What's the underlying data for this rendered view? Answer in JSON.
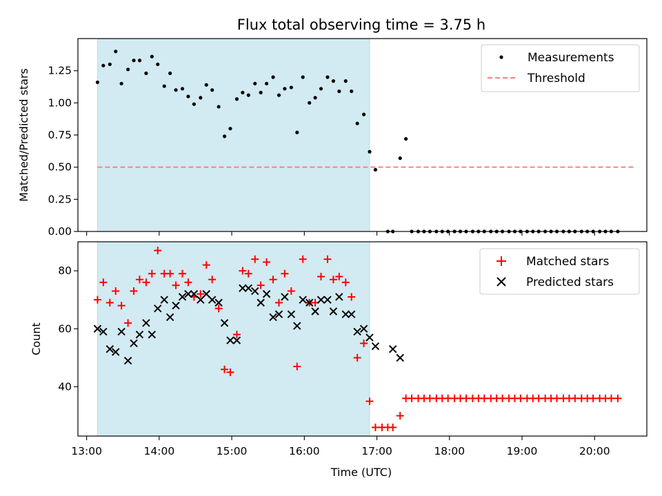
{
  "figure_title": "Flux total observing time = 3.75 h",
  "xlabel": "Time (UTC)",
  "x_ticks": [
    "13:00",
    "14:00",
    "15:00",
    "16:00",
    "17:00",
    "18:00",
    "19:00",
    "20:00"
  ],
  "colors": {
    "shade": "#add8e6",
    "matched": "#ff0000",
    "predicted": "#000000",
    "measurement": "#000000",
    "threshold": "#ff7f7f"
  },
  "chart_data": [
    {
      "type": "scatter",
      "panel": "top",
      "title": "Flux total observing time = 3.75 h",
      "xlabel": "",
      "ylabel": "Matched/Predicted stars",
      "x_unit": "hours UTC",
      "xlim": [
        12.88,
        20.72
      ],
      "ylim": [
        0,
        1.5
      ],
      "y_ticks": [
        "0.00",
        "0.25",
        "0.50",
        "0.75",
        "1.00",
        "1.25"
      ],
      "y_tick_values": [
        0,
        0.25,
        0.5,
        0.75,
        1.0,
        1.25
      ],
      "shaded_span": [
        "13:09",
        "16:54"
      ],
      "legend": {
        "placement": "top-right",
        "entries": [
          "Measurements",
          "Threshold"
        ]
      },
      "series": [
        {
          "name": "Measurements",
          "kind": "dots",
          "x": [
            13.15,
            13.23,
            13.32,
            13.4,
            13.48,
            13.57,
            13.65,
            13.73,
            13.82,
            13.9,
            13.98,
            14.07,
            14.15,
            14.23,
            14.32,
            14.4,
            14.48,
            14.57,
            14.65,
            14.73,
            14.82,
            14.9,
            14.98,
            15.07,
            15.15,
            15.23,
            15.32,
            15.4,
            15.48,
            15.57,
            15.65,
            15.73,
            15.82,
            15.9,
            15.98,
            16.07,
            16.15,
            16.23,
            16.32,
            16.4,
            16.48,
            16.57,
            16.65,
            16.73,
            16.82,
            16.9,
            16.98,
            17.15,
            17.22,
            17.32,
            17.4,
            17.48,
            17.57,
            17.65,
            17.73,
            17.82,
            17.9,
            17.98,
            18.07,
            18.15,
            18.23,
            18.32,
            18.4,
            18.48,
            18.57,
            18.65,
            18.73,
            18.82,
            18.9,
            18.98,
            19.07,
            19.15,
            19.23,
            19.32,
            19.4,
            19.48,
            19.57,
            19.65,
            19.73,
            19.82,
            19.9,
            19.98,
            20.07,
            20.15,
            20.23,
            20.32
          ],
          "y": [
            1.16,
            1.29,
            1.3,
            1.4,
            1.15,
            1.26,
            1.33,
            1.33,
            1.23,
            1.36,
            1.3,
            1.13,
            1.23,
            1.1,
            1.11,
            1.05,
            0.99,
            1.04,
            1.14,
            1.1,
            0.97,
            0.74,
            0.8,
            1.03,
            1.08,
            1.06,
            1.15,
            1.08,
            1.15,
            1.2,
            1.06,
            1.11,
            1.12,
            0.77,
            1.2,
            1.0,
            1.04,
            1.11,
            1.2,
            1.17,
            1.09,
            1.17,
            1.09,
            0.84,
            0.91,
            0.62,
            0.48,
            0.0,
            0.0,
            0.57,
            0.72,
            0.0,
            0.0,
            0.0,
            0.0,
            0.0,
            0.0,
            0.0,
            0.0,
            0.0,
            0.0,
            0.0,
            0.0,
            0.0,
            0.0,
            0.0,
            0.0,
            0.0,
            0.0,
            0.0,
            0.0,
            0.0,
            0.0,
            0.0,
            0.0,
            0.0,
            0.0,
            0.0,
            0.0,
            0.0,
            0.0,
            0.0,
            0.0,
            0.0,
            0.0,
            0.0
          ]
        },
        {
          "name": "Threshold",
          "kind": "dashed-line",
          "x": [
            13.15,
            20.57
          ],
          "y": [
            0.5,
            0.5
          ]
        }
      ]
    },
    {
      "type": "scatter",
      "panel": "bottom",
      "xlabel": "Time (UTC)",
      "ylabel": "Count",
      "x_unit": "hours UTC",
      "xlim": [
        12.88,
        20.72
      ],
      "ylim": [
        23,
        90
      ],
      "y_ticks": [
        "40",
        "60",
        "80"
      ],
      "y_tick_values": [
        40,
        60,
        80
      ],
      "shaded_span": [
        "13:09",
        "16:54"
      ],
      "legend": {
        "placement": "top-right",
        "entries": [
          "Matched stars",
          "Predicted stars"
        ]
      },
      "series": [
        {
          "name": "Matched stars",
          "kind": "plus",
          "x": [
            13.15,
            13.23,
            13.32,
            13.4,
            13.48,
            13.57,
            13.65,
            13.73,
            13.82,
            13.9,
            13.98,
            14.07,
            14.15,
            14.23,
            14.32,
            14.4,
            14.48,
            14.57,
            14.65,
            14.73,
            14.82,
            14.9,
            14.98,
            15.07,
            15.15,
            15.23,
            15.32,
            15.4,
            15.48,
            15.57,
            15.65,
            15.73,
            15.82,
            15.9,
            15.98,
            16.07,
            16.15,
            16.23,
            16.32,
            16.4,
            16.48,
            16.57,
            16.65,
            16.73,
            16.82,
            16.9,
            16.98,
            17.07,
            17.15,
            17.22,
            17.32,
            17.4,
            17.48,
            17.57,
            17.65,
            17.73,
            17.82,
            17.9,
            17.98,
            18.07,
            18.15,
            18.23,
            18.32,
            18.4,
            18.48,
            18.57,
            18.65,
            18.73,
            18.82,
            18.9,
            18.98,
            19.07,
            19.15,
            19.23,
            19.32,
            19.4,
            19.48,
            19.57,
            19.65,
            19.73,
            19.82,
            19.9,
            19.98,
            20.07,
            20.15,
            20.23,
            20.32
          ],
          "y": [
            70,
            76,
            69,
            73,
            68,
            62,
            73,
            77,
            76,
            79,
            87,
            79,
            79,
            75,
            79,
            76,
            71,
            72,
            82,
            77,
            67,
            46,
            45,
            58,
            80,
            79,
            84,
            75,
            83,
            77,
            69,
            79,
            73,
            47,
            84,
            69,
            69,
            78,
            84,
            77,
            78,
            76,
            71,
            50,
            55,
            35,
            26,
            26,
            26,
            26,
            30,
            36,
            36,
            36,
            36,
            36,
            36,
            36,
            36,
            36,
            36,
            36,
            36,
            36,
            36,
            36,
            36,
            36,
            36,
            36,
            36,
            36,
            36,
            36,
            36,
            36,
            36,
            36,
            36,
            36,
            36,
            36,
            36,
            36,
            36,
            36,
            36
          ]
        },
        {
          "name": "Predicted stars",
          "kind": "x",
          "x": [
            13.15,
            13.23,
            13.32,
            13.4,
            13.48,
            13.57,
            13.65,
            13.73,
            13.82,
            13.9,
            13.98,
            14.07,
            14.15,
            14.23,
            14.32,
            14.4,
            14.48,
            14.57,
            14.65,
            14.73,
            14.82,
            14.9,
            14.98,
            15.07,
            15.15,
            15.23,
            15.32,
            15.4,
            15.48,
            15.57,
            15.65,
            15.73,
            15.82,
            15.9,
            15.98,
            16.07,
            16.15,
            16.23,
            16.32,
            16.4,
            16.48,
            16.57,
            16.65,
            16.73,
            16.82,
            16.9,
            16.98,
            17.22,
            17.32
          ],
          "y": [
            60,
            59,
            53,
            52,
            59,
            49,
            55,
            58,
            62,
            58,
            67,
            70,
            64,
            68,
            71,
            72,
            72,
            70,
            72,
            70,
            69,
            62,
            56,
            56,
            74,
            74,
            73,
            69,
            72,
            64,
            65,
            71,
            65,
            61,
            70,
            69,
            66,
            70,
            70,
            66,
            71,
            65,
            65,
            59,
            60,
            57,
            54,
            53,
            50
          ]
        }
      ]
    }
  ]
}
